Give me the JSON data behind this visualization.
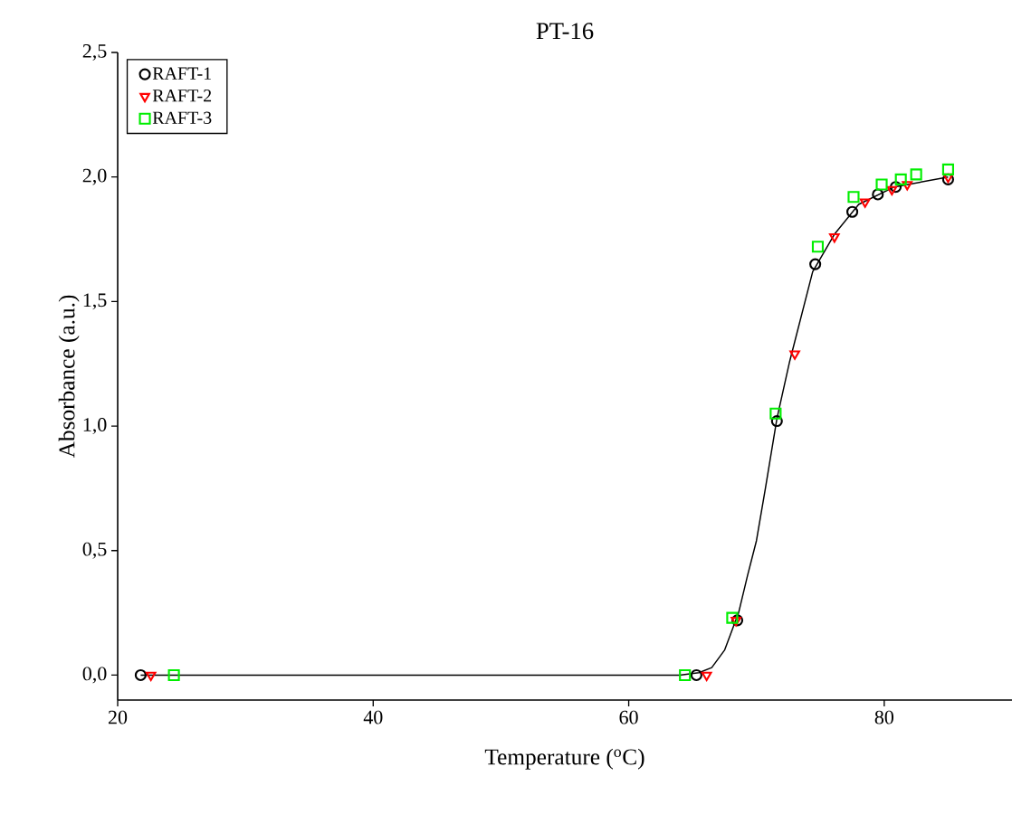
{
  "chart_data": {
    "type": "scatter",
    "title": "PT-16",
    "xlabel": "Temperature ($^{o}$C)",
    "ylabel": "Absorbance (a.u.)",
    "xlim": [
      20,
      90
    ],
    "ylim": [
      -0.1,
      2.5
    ],
    "xticks": [
      20,
      40,
      60,
      80
    ],
    "yticks": [
      {
        "value": 0,
        "label": "0,0"
      },
      {
        "value": 0.5,
        "label": "0,5"
      },
      {
        "value": 1,
        "label": "1,0"
      },
      {
        "value": 1.5,
        "label": "1,5"
      },
      {
        "value": 2,
        "label": "2,0"
      },
      {
        "value": 2.5,
        "label": "2,5"
      }
    ],
    "grid": false,
    "legend": "top left",
    "series": [
      {
        "name": "RAFT-1",
        "color": "#000000",
        "marker": "circle",
        "x": [
          21.8,
          65.3,
          68.5,
          71.6,
          74.6,
          77.5,
          79.5,
          80.9,
          85.0
        ],
        "values": [
          0.0,
          0.0,
          0.22,
          1.02,
          1.65,
          1.86,
          1.93,
          1.96,
          1.99
        ]
      },
      {
        "name": "RAFT-2",
        "color": "#ff0000",
        "marker": "triangle",
        "x": [
          22.6,
          66.1,
          68.4,
          73.0,
          76.1,
          78.5,
          80.6,
          81.8,
          85.0
        ],
        "values": [
          0.0,
          0.0,
          0.22,
          1.29,
          1.76,
          1.9,
          1.95,
          1.97,
          2.0
        ]
      },
      {
        "name": "RAFT-3",
        "color": "#00ee00",
        "marker": "square",
        "x": [
          24.4,
          64.4,
          68.1,
          71.5,
          74.8,
          77.6,
          79.8,
          81.3,
          82.5,
          85.0
        ],
        "values": [
          0.0,
          0.0,
          0.23,
          1.05,
          1.72,
          1.92,
          1.97,
          1.99,
          2.01,
          2.03
        ]
      },
      {
        "type": "line",
        "color": "#000000",
        "marker": "none",
        "line_style": "solid",
        "x": [
          21.8,
          40,
          60,
          64,
          65.5,
          66.5,
          67.5,
          68.6,
          69.3,
          70.0,
          70.7,
          71.6,
          72.6,
          73.0,
          74.4,
          76.1,
          78.0,
          80.8,
          85.0
        ],
        "values": [
          0.0,
          0.0,
          0.0,
          0.0,
          0.01,
          0.03,
          0.1,
          0.25,
          0.4,
          0.54,
          0.75,
          1.03,
          1.26,
          1.34,
          1.62,
          1.77,
          1.89,
          1.96,
          2.0
        ]
      }
    ]
  }
}
